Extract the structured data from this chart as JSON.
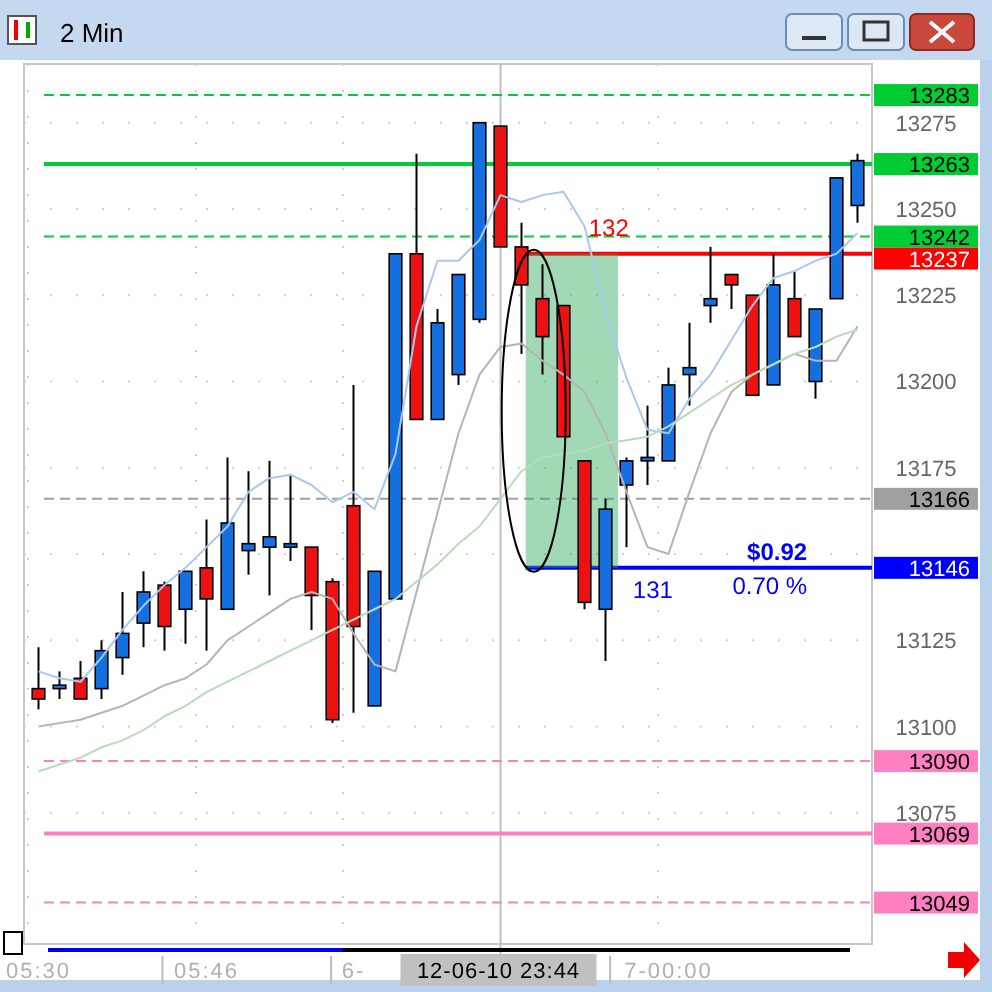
{
  "chart_data": {
    "type": "candlestick",
    "title": "2 Min",
    "categories": [
      "05:30",
      null,
      null,
      null,
      null,
      null,
      null,
      null,
      "05:46",
      null,
      null,
      null,
      null,
      null,
      null,
      "6-",
      null,
      null,
      null,
      null,
      null,
      null,
      null,
      null,
      null,
      null,
      null,
      null,
      null,
      null,
      "7-00:00",
      null,
      null,
      null,
      null,
      null,
      null,
      null,
      null,
      null
    ],
    "ohlc": [
      [
        13111,
        13123,
        13105,
        13108
      ],
      [
        13111,
        13116,
        13108,
        13112
      ],
      [
        13114,
        13119,
        13108,
        13108
      ],
      [
        13111,
        13125,
        13108,
        13122
      ],
      [
        13120,
        13139,
        13115,
        13127
      ],
      [
        13130,
        13145,
        13123,
        13139
      ],
      [
        13141,
        13142,
        13122,
        13129
      ],
      [
        13134,
        13145,
        13124,
        13145
      ],
      [
        13146,
        13160,
        13122,
        13137
      ],
      [
        13134,
        13178,
        13134,
        13159
      ],
      [
        13151,
        13174,
        13144,
        13153
      ],
      [
        13152,
        13177,
        13138,
        13155
      ],
      [
        13152,
        13173,
        13148,
        13153
      ],
      [
        13152,
        13152,
        13128,
        13138
      ],
      [
        13142,
        13143,
        13101,
        13102
      ],
      [
        13164,
        13199,
        13104,
        13129
      ],
      [
        13106,
        13145,
        13106,
        13145
      ],
      [
        13137,
        13237,
        13137,
        13237
      ],
      [
        13237,
        13266,
        13189,
        13189
      ],
      [
        13189,
        13221,
        13189,
        13217
      ],
      [
        13202,
        13231,
        13199,
        13231
      ],
      [
        13218,
        13275,
        13217,
        13275
      ],
      [
        13274,
        13274,
        13239,
        13239
      ],
      [
        13239,
        13246,
        13208,
        13228
      ],
      [
        13224,
        13234,
        13202,
        13213
      ],
      [
        13222,
        13222,
        13184,
        13184
      ],
      [
        13177,
        13177,
        13134,
        13136
      ],
      [
        13134,
        13166,
        13119,
        13163
      ],
      [
        13170,
        13178,
        13152,
        13177
      ],
      [
        13177,
        13193,
        13170,
        13178
      ],
      [
        13177,
        13204,
        13177,
        13199
      ],
      [
        13202,
        13217,
        13193,
        13204
      ],
      [
        13222,
        13239,
        13217,
        13224
      ],
      [
        13231,
        13231,
        13221,
        13228
      ],
      [
        13225,
        13225,
        13196,
        13196
      ],
      [
        13199,
        13237,
        13199,
        13228
      ],
      [
        13224,
        13232,
        13213,
        13213
      ],
      [
        13200,
        13221,
        13195,
        13221
      ],
      [
        13224,
        13259,
        13224,
        13259
      ],
      [
        13251,
        13266,
        13246,
        13264
      ]
    ],
    "colors": [
      "#ee1111",
      "#1e7fe6",
      "#ee1111",
      "#1470e0",
      "#1470e0",
      "#1470e0",
      "#ee1111",
      "#1470e0",
      "#ee1111",
      "#1470e0",
      "#1470e0",
      "#1470e0",
      "#1470e0",
      "#ee1111",
      "#ee1111",
      "#ee1111",
      "#1470e0",
      "#1470e0",
      "#ee1111",
      "#1470e0",
      "#1470e0",
      "#1470e0",
      "#ee1111",
      "#ee1111",
      "#ee1111",
      "#ee1111",
      "#ee1111",
      "#1470e0",
      "#1470e0",
      "#1470e0",
      "#1470e0",
      "#1470e0",
      "#1470e0",
      "#ee1111",
      "#ee1111",
      "#1470e0",
      "#ee1111",
      "#1470e0",
      "#1470e0",
      "#1470e0"
    ],
    "series": [
      {
        "type": "line",
        "color": "#a8c8f0",
        "values": [
          13116,
          13114,
          13113,
          13120,
          13128,
          13135,
          13141,
          13146,
          13152,
          13158,
          13168,
          13172,
          13173,
          13170,
          13165,
          13168,
          13163,
          13179,
          13216,
          13235,
          13235,
          13241,
          13254,
          13252,
          13254,
          13255,
          13245,
          13220,
          13201,
          13186,
          13185,
          13195,
          13202,
          13212,
          13222,
          13230,
          13232,
          13235,
          13237,
          13243
        ]
      },
      {
        "type": "line",
        "color": "#b4b4b4",
        "values": [
          13100,
          13101,
          13102,
          13104,
          13106,
          13109,
          13112,
          13114,
          13118,
          13125,
          13129,
          13133,
          13137,
          13139,
          13137,
          13127,
          13118,
          13116,
          13139,
          13162,
          13185,
          13202,
          13210,
          13211,
          13206,
          13202,
          13197,
          13185,
          13168,
          13152,
          13150,
          13168,
          13185,
          13197,
          13202,
          13205,
          13208,
          13206,
          13206,
          13216
        ]
      },
      {
        "type": "line",
        "color": "#b8dcb8",
        "values": [
          13087,
          13089,
          13091,
          13094,
          13096,
          13099,
          13103,
          13106,
          13110,
          13113,
          13116,
          13119,
          13122,
          13125,
          13128,
          13131,
          13134,
          13137,
          13142,
          13147,
          13153,
          13158,
          13166,
          13174,
          13178,
          13179,
          13180,
          13182,
          13183,
          13184,
          13187,
          13191,
          13195,
          13199,
          13202,
          13205,
          13208,
          13210,
          13213,
          13215
        ]
      }
    ],
    "ylim": [
      13037,
      13292
    ],
    "yticks": [
      13075,
      13100,
      13125,
      {
        "value": 13150,
        "label": null
      },
      13175,
      13200,
      13225,
      13250,
      13275
    ],
    "grid": true,
    "ref_lines": [
      {
        "axis": "y",
        "value": 13283,
        "label": "13283",
        "color": "#00cc33",
        "line_style": "dashed"
      },
      {
        "axis": "y",
        "value": 13263,
        "label": "13263",
        "color": "#00cc33",
        "line_style": "solid"
      },
      {
        "axis": "y",
        "value": 13242,
        "label": "13242",
        "color": "#00cc33",
        "line_style": "dashed"
      },
      {
        "axis": "y",
        "value": 13237,
        "label": "13237",
        "color": "#ff0000",
        "line_style": "solid"
      },
      {
        "axis": "y",
        "value": 13166,
        "label": "13166",
        "color": "#a0a0a0",
        "line_style": "dashed"
      },
      {
        "axis": "y",
        "value": 13146,
        "label": "13146",
        "color": "#0000ff",
        "line_style": "solid"
      },
      {
        "axis": "y",
        "value": 13090,
        "label": "13090",
        "color": "#ff80c0",
        "line_style": "dashed"
      },
      {
        "axis": "y",
        "value": 13069,
        "label": "13069",
        "color": "#ff80c0",
        "line_style": "solid"
      },
      {
        "axis": "y",
        "value": 13049,
        "label": "13049",
        "color": "#ff80c0",
        "line_style": "dashed"
      }
    ],
    "annotations": [
      "132",
      "131",
      "$0.92",
      "0.70 %",
      "12-06-10 23:44"
    ]
  }
}
